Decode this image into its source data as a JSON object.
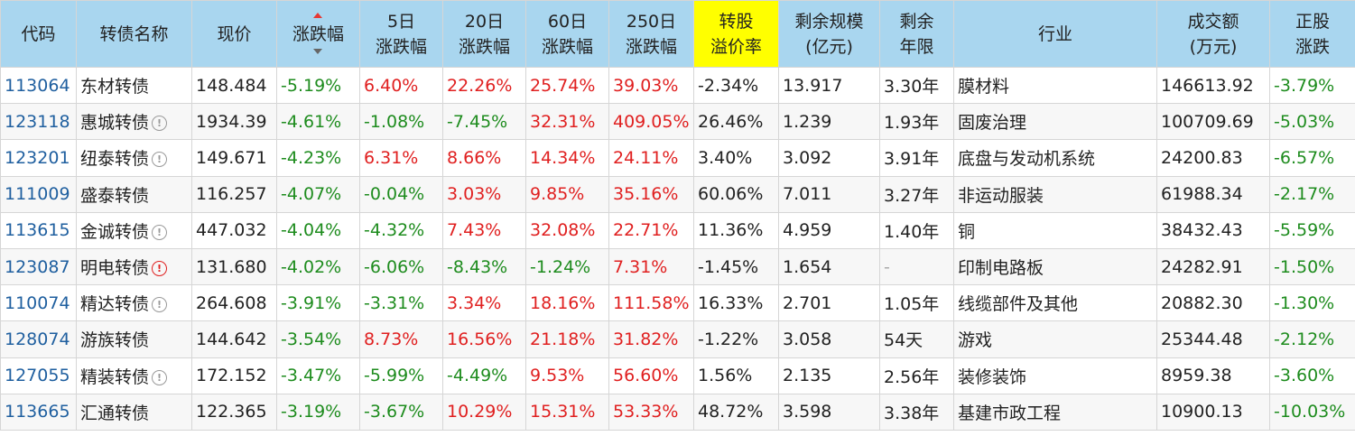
{
  "headers": [
    {
      "line1": "代码",
      "line2": ""
    },
    {
      "line1": "转债名称",
      "line2": ""
    },
    {
      "line1": "现价",
      "line2": ""
    },
    {
      "line1": "涨跌幅",
      "line2": ""
    },
    {
      "line1": "5日",
      "line2": "涨跌幅"
    },
    {
      "line1": "20日",
      "line2": "涨跌幅"
    },
    {
      "line1": "60日",
      "line2": "涨跌幅"
    },
    {
      "line1": "250日",
      "line2": "涨跌幅"
    },
    {
      "line1": "转股",
      "line2": "溢价率"
    },
    {
      "line1": "剩余规模",
      "line2": "(亿元)"
    },
    {
      "line1": "剩余",
      "line2": "年限"
    },
    {
      "line1": "行业",
      "line2": ""
    },
    {
      "line1": "成交额",
      "line2": "(万元)"
    },
    {
      "line1": "正股",
      "line2": "涨跌"
    }
  ],
  "rows": [
    {
      "code": "113064",
      "name": "东材转债",
      "icon": "",
      "price": "148.484",
      "chg": "-5.19%",
      "chg5": "6.40%",
      "chg20": "22.26%",
      "chg60": "25.74%",
      "chg250": "39.03%",
      "premium": "-2.34%",
      "size": "13.917",
      "years": "3.30年",
      "industry": "膜材料",
      "volume": "146613.92",
      "stock_chg": "-3.79%"
    },
    {
      "code": "123118",
      "name": "惠城转债",
      "icon": "info",
      "price": "1934.39",
      "chg": "-4.61%",
      "chg5": "-1.08%",
      "chg20": "-7.45%",
      "chg60": "32.31%",
      "chg250": "409.05%",
      "premium": "26.46%",
      "size": "1.239",
      "years": "1.93年",
      "industry": "固废治理",
      "volume": "100709.69",
      "stock_chg": "-5.03%"
    },
    {
      "code": "123201",
      "name": "纽泰转债",
      "icon": "info",
      "price": "149.671",
      "chg": "-4.23%",
      "chg5": "6.31%",
      "chg20": "8.66%",
      "chg60": "14.34%",
      "chg250": "24.11%",
      "premium": "3.40%",
      "size": "3.092",
      "years": "3.91年",
      "industry": "底盘与发动机系统",
      "volume": "24200.83",
      "stock_chg": "-6.57%"
    },
    {
      "code": "111009",
      "name": "盛泰转债",
      "icon": "",
      "price": "116.257",
      "chg": "-4.07%",
      "chg5": "-0.04%",
      "chg20": "3.03%",
      "chg60": "9.85%",
      "chg250": "35.16%",
      "premium": "60.06%",
      "size": "7.011",
      "years": "3.27年",
      "industry": "非运动服装",
      "volume": "61988.34",
      "stock_chg": "-2.17%"
    },
    {
      "code": "113615",
      "name": "金诚转债",
      "icon": "info",
      "price": "447.032",
      "chg": "-4.04%",
      "chg5": "-4.32%",
      "chg20": "7.43%",
      "chg60": "32.08%",
      "chg250": "22.71%",
      "premium": "11.36%",
      "size": "4.959",
      "years": "1.40年",
      "industry": "铜",
      "volume": "38432.43",
      "stock_chg": "-5.59%"
    },
    {
      "code": "123087",
      "name": "明电转债",
      "icon": "warn",
      "price": "131.680",
      "chg": "-4.02%",
      "chg5": "-6.06%",
      "chg20": "-8.43%",
      "chg60": "-1.24%",
      "chg250": "7.31%",
      "premium": "-1.45%",
      "size": "1.654",
      "years": "-",
      "industry": "印制电路板",
      "volume": "24282.91",
      "stock_chg": "-1.50%"
    },
    {
      "code": "110074",
      "name": "精达转债",
      "icon": "info",
      "price": "264.608",
      "chg": "-3.91%",
      "chg5": "-3.31%",
      "chg20": "3.34%",
      "chg60": "18.16%",
      "chg250": "111.58%",
      "premium": "16.33%",
      "size": "2.701",
      "years": "1.05年",
      "industry": "线缆部件及其他",
      "volume": "20882.30",
      "stock_chg": "-1.30%"
    },
    {
      "code": "128074",
      "name": "游族转债",
      "icon": "",
      "price": "144.642",
      "chg": "-3.54%",
      "chg5": "8.73%",
      "chg20": "16.56%",
      "chg60": "21.18%",
      "chg250": "31.82%",
      "premium": "-1.22%",
      "size": "3.058",
      "years": "54天",
      "industry": "游戏",
      "volume": "25344.48",
      "stock_chg": "-2.12%"
    },
    {
      "code": "127055",
      "name": "精装转债",
      "icon": "info",
      "price": "172.152",
      "chg": "-3.47%",
      "chg5": "-5.99%",
      "chg20": "-4.49%",
      "chg60": "9.53%",
      "chg250": "56.60%",
      "premium": "1.56%",
      "size": "2.135",
      "years": "2.56年",
      "industry": "装修装饰",
      "volume": "8959.38",
      "stock_chg": "-3.60%"
    },
    {
      "code": "113665",
      "name": "汇通转债",
      "icon": "",
      "price": "122.365",
      "chg": "-3.19%",
      "chg5": "-3.67%",
      "chg20": "10.29%",
      "chg60": "15.31%",
      "chg250": "53.33%",
      "premium": "48.72%",
      "size": "3.598",
      "years": "3.38年",
      "industry": "基建市政工程",
      "volume": "10900.13",
      "stock_chg": "-10.03%"
    }
  ],
  "colors": {
    "header_bg": "#a9d6ef",
    "highlight_bg": "#ffff00",
    "positive": "#e02020",
    "negative": "#1e8c1e",
    "code": "#1f5f9f"
  },
  "sort": {
    "column": "涨跌幅",
    "indicator": "sort-arrows-icon"
  }
}
